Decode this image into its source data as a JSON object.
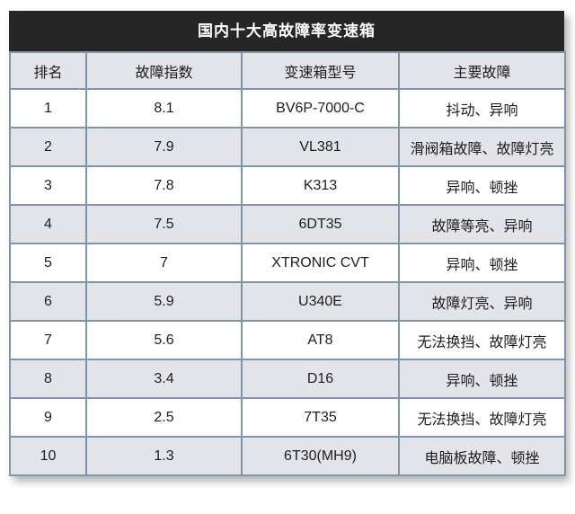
{
  "chart_data": {
    "type": "table",
    "title": "国内十大高故障率变速箱",
    "columns": [
      "排名",
      "故障指数",
      "变速箱型号",
      "主要故障"
    ],
    "rows": [
      [
        "1",
        "8.1",
        "BV6P-7000-C",
        "抖动、异响"
      ],
      [
        "2",
        "7.9",
        "VL381",
        "滑阀箱故障、故障灯亮"
      ],
      [
        "3",
        "7.8",
        "K313",
        "异响、顿挫"
      ],
      [
        "4",
        "7.5",
        "6DT35",
        "故障等亮、异响"
      ],
      [
        "5",
        "7",
        "XTRONIC CVT",
        "异响、顿挫"
      ],
      [
        "6",
        "5.9",
        "U340E",
        "故障灯亮、异响"
      ],
      [
        "7",
        "5.6",
        "AT8",
        "无法换挡、故障灯亮"
      ],
      [
        "8",
        "3.4",
        "D16",
        "异响、顿挫"
      ],
      [
        "9",
        "2.5",
        "7T35",
        "无法换挡、故障灯亮"
      ],
      [
        "10",
        "1.3",
        "6T30(MH9)",
        "电脑板故障、顿挫"
      ]
    ],
    "layout": {
      "alternating_rows": true,
      "header_position": "top"
    }
  },
  "colors": {
    "title_bg": "#262626",
    "title_text": "#ffffff",
    "header_bg": "#e2e4e9",
    "row_alt_bg": "#e2e4e9",
    "row_bg": "#ffffff",
    "border": "#7f94ad",
    "cell_text": "#1d1d1d"
  }
}
